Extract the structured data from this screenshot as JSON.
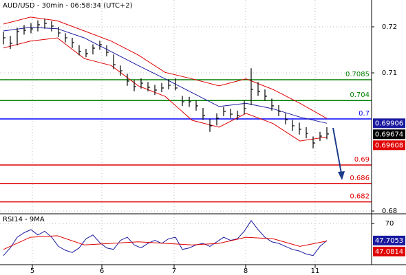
{
  "chart_data": [
    {
      "type": "hlc",
      "title": "AUD/USD - 30min - 06:58:34 (UTC+2)",
      "color": "#000000",
      "high": [
        0.7189,
        0.718,
        0.7198,
        0.7204,
        0.7208,
        0.7214,
        0.7218,
        0.7212,
        0.72,
        0.7186,
        0.7176,
        0.716,
        0.7152,
        0.7162,
        0.717,
        0.716,
        0.714,
        0.7116,
        0.7098,
        0.7084,
        0.7088,
        0.708,
        0.7074,
        0.7078,
        0.7086,
        0.7088,
        0.705,
        0.7048,
        0.704,
        0.7024,
        0.7,
        0.7012,
        0.7026,
        0.7022,
        0.7018,
        0.704,
        0.711,
        0.708,
        0.7064,
        0.7044,
        0.703,
        0.7012,
        0.6998,
        0.6992,
        0.6982,
        0.6962,
        0.6972,
        0.6982
      ],
      "low": [
        0.7162,
        0.7152,
        0.716,
        0.7183,
        0.7186,
        0.719,
        0.7196,
        0.719,
        0.7178,
        0.7166,
        0.7154,
        0.7138,
        0.7134,
        0.714,
        0.715,
        0.7136,
        0.7108,
        0.7094,
        0.7072,
        0.706,
        0.7066,
        0.706,
        0.7052,
        0.7058,
        0.7064,
        0.7062,
        0.7028,
        0.7026,
        0.7018,
        0.6998,
        0.6972,
        0.6986,
        0.7006,
        0.7002,
        0.6998,
        0.701,
        0.703,
        0.705,
        0.704,
        0.7018,
        0.7006,
        0.6988,
        0.6974,
        0.6966,
        0.6958,
        0.6936,
        0.6952,
        0.6956
      ],
      "close": [
        0.71761,
        0.71642,
        0.71896,
        0.71925,
        0.71955,
        0.72045,
        0.72075,
        0.72015,
        0.71866,
        0.71761,
        0.71657,
        0.71463,
        0.71418,
        0.71537,
        0.71612,
        0.71448,
        0.71179,
        0.71045,
        0.70821,
        0.70701,
        0.70776,
        0.70687,
        0.70627,
        0.70672,
        0.70731,
        0.70672,
        0.70373,
        0.70373,
        0.70284,
        0.70075,
        0.69851,
        0.70015,
        0.70164,
        0.70104,
        0.70075,
        0.70224,
        0.70642,
        0.70597,
        0.70493,
        0.70284,
        0.70164,
        0.69985,
        0.69851,
        0.69776,
        0.69687,
        0.69478,
        0.69627,
        0.69674
      ],
      "upper_band": {
        "color": "#e00000",
        "values": [
          0.7206,
          0.7221,
          0.7213,
          0.7191,
          0.7169,
          0.7139,
          0.7101,
          0.7087,
          0.7072,
          0.7087,
          0.7064,
          0.7034,
          0.7001
        ]
      },
      "lower_band": {
        "color": "#e00000",
        "values": [
          0.7154,
          0.7169,
          0.7176,
          0.7131,
          0.7116,
          0.7072,
          0.7049,
          0.6997,
          0.6982,
          0.7012,
          0.699,
          0.6952,
          0.69608
        ]
      },
      "ma": {
        "color": "#1a1aa0",
        "values": [
          0.7191,
          0.7199,
          0.7196,
          0.7176,
          0.7146,
          0.7116,
          0.7087,
          0.7057,
          0.7027,
          0.7034,
          0.7022,
          0.7004,
          0.69906
        ]
      },
      "levels": [
        {
          "value": 0.7085,
          "color": "#008000"
        },
        {
          "value": 0.704,
          "color": "#008000"
        },
        {
          "value": 0.7,
          "color": "#0000ff"
        },
        {
          "value": 0.69,
          "color": "#e00000"
        },
        {
          "value": 0.686,
          "color": "#e00000"
        },
        {
          "value": 0.682,
          "color": "#e00000"
        }
      ],
      "ylim": [
        0.67955,
        0.72582
      ],
      "yticks": [
        0.72,
        0.71,
        0.68
      ],
      "xlim": [
        -0.5,
        53.5
      ],
      "xticks": [
        {
          "value": 4.2,
          "label": "5"
        },
        {
          "value": 14.3,
          "label": "6"
        },
        {
          "value": 24.8,
          "label": "7"
        },
        {
          "value": 35.2,
          "label": "8"
        },
        {
          "value": 45.3,
          "label": "11"
        }
      ],
      "grid": true
    },
    {
      "type": "rsi",
      "title": "RSI14 - 9MA",
      "color": "#1a1aa0",
      "values": [
        28,
        38,
        52,
        58,
        62,
        55,
        60,
        52,
        40,
        35,
        32,
        38,
        50,
        55,
        45,
        38,
        36,
        48,
        52,
        42,
        38,
        44,
        48,
        44,
        50,
        52,
        36,
        38,
        42,
        44,
        40,
        46,
        52,
        48,
        50,
        60,
        74,
        62,
        52,
        46,
        44,
        40,
        36,
        34,
        30,
        28,
        40,
        47.7053
      ],
      "ma": {
        "color": "#e00000",
        "values": [
          36,
          52,
          54,
          42,
          44,
          46,
          44,
          42,
          44,
          52,
          50,
          40,
          47.0814
        ]
      },
      "ylim": [
        16,
        81
      ],
      "yticks": [
        70
      ],
      "grid": true
    }
  ]
}
